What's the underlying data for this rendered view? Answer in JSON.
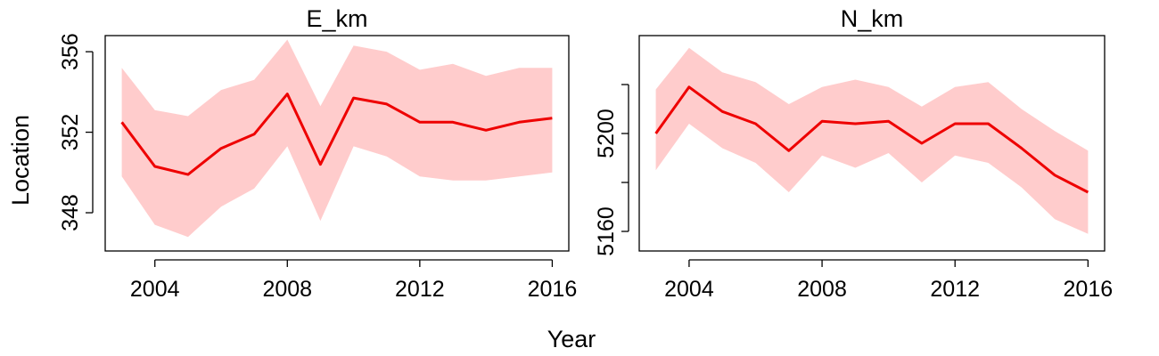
{
  "figure": {
    "ylabel": "Location",
    "xlabel": "Year",
    "line_color": "#ee0000",
    "band_color": "#ffcccc"
  },
  "chart_data": [
    {
      "type": "line",
      "title": "E_km",
      "x": [
        2003,
        2004,
        2005,
        2006,
        2007,
        2008,
        2009,
        2010,
        2011,
        2012,
        2013,
        2014,
        2015,
        2016
      ],
      "series": [
        {
          "values": [
            352.5,
            350.3,
            349.9,
            351.2,
            351.9,
            353.9,
            350.4,
            353.7,
            353.4,
            352.5,
            352.5,
            352.1,
            352.5,
            352.7
          ]
        }
      ],
      "ribbon_lower": [
        349.8,
        347.4,
        346.8,
        348.3,
        349.2,
        351.3,
        347.6,
        351.3,
        350.8,
        349.8,
        349.6,
        349.6,
        349.8,
        350.0
      ],
      "ribbon_upper": [
        355.2,
        353.1,
        352.8,
        354.1,
        354.6,
        356.6,
        353.3,
        356.3,
        356.0,
        355.1,
        355.4,
        354.8,
        355.2,
        355.2
      ],
      "xticks": [
        2004,
        2008,
        2012,
        2016
      ],
      "yticks": [
        348,
        352,
        356
      ],
      "xlim": [
        2002.5,
        2016.5
      ],
      "ylim": [
        346.1,
        356.8
      ]
    },
    {
      "type": "line",
      "title": "N_km",
      "x": [
        2003,
        2004,
        2005,
        2006,
        2007,
        2008,
        2009,
        2010,
        2011,
        2012,
        2013,
        2014,
        2015,
        2016
      ],
      "series": [
        {
          "values": [
            5200,
            5219,
            5209,
            5204,
            5193,
            5205,
            5204,
            5205,
            5196,
            5204,
            5204,
            5194,
            5183,
            5176
          ]
        }
      ],
      "ribbon_lower": [
        5185,
        5204,
        5194,
        5188,
        5176,
        5191,
        5186,
        5192,
        5180,
        5191,
        5188,
        5178,
        5165,
        5159
      ],
      "ribbon_upper": [
        5218,
        5235,
        5225,
        5221,
        5212,
        5219,
        5222,
        5219,
        5211,
        5219,
        5221,
        5210,
        5201,
        5193
      ],
      "xticks": [
        2004,
        2008,
        2012,
        2016
      ],
      "yticks": [
        5160,
        5180,
        5200,
        5220
      ],
      "yticklabels": [
        "5160",
        "",
        "5200",
        ""
      ],
      "xlim": [
        2002.5,
        2016.5
      ],
      "ylim": [
        5152,
        5240
      ]
    }
  ]
}
